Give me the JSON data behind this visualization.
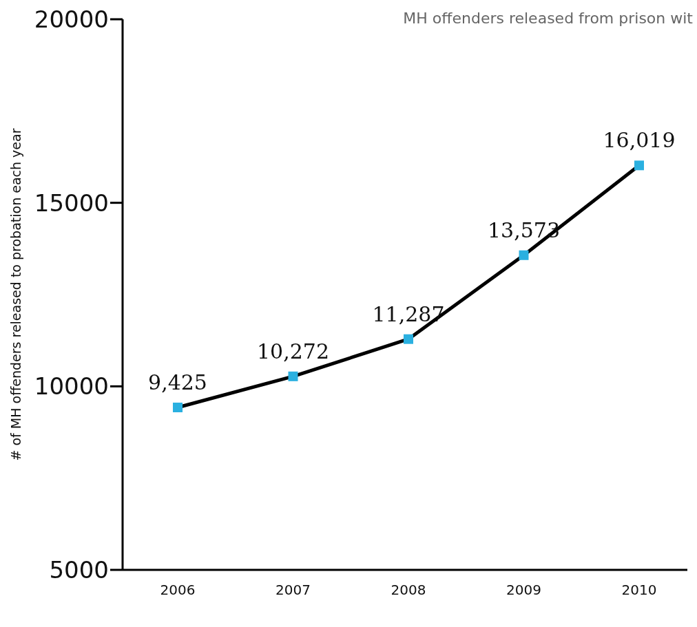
{
  "chart_data": {
    "type": "line",
    "title": "MH offenders released from prison wit",
    "ylabel": "# of MH offenders released to probation each year",
    "categories": [
      "2006",
      "2007",
      "2008",
      "2009",
      "2010"
    ],
    "series": [
      {
        "color": "#000000",
        "colors": [
          "#2ab0e0",
          "#2ab0e0",
          "#2ab0e0",
          "#2ab0e0",
          "#2ab0e0"
        ],
        "values": [
          9425,
          10272,
          11287,
          13573,
          16019
        ],
        "value_labels": [
          "9,425",
          "10,272",
          "11,287",
          "13,573",
          "16,019"
        ]
      }
    ],
    "marker": "square",
    "line_style": "solid",
    "ylim": [
      5000,
      20000
    ],
    "yticks": [
      5000,
      10000,
      15000,
      20000
    ],
    "grid": false,
    "legend": false
  }
}
